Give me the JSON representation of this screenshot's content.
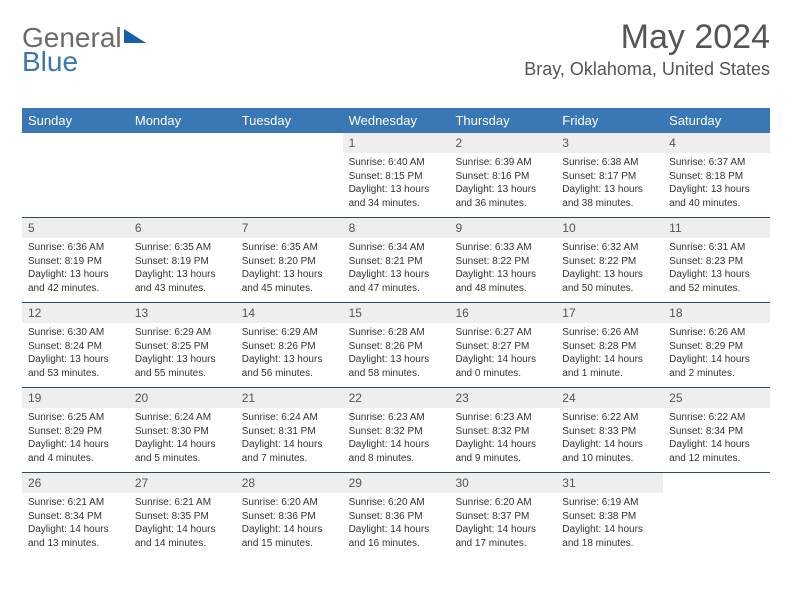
{
  "brand": {
    "part1": "General",
    "part2": "Blue"
  },
  "title": "May 2024",
  "location": "Bray, Oklahoma, United States",
  "colors": {
    "header_bg": "#3a78b5",
    "header_text": "#ffffff",
    "daynum_bg": "#eeeeee",
    "text": "#555555",
    "rule": "#264a6e"
  },
  "typography": {
    "title_fontsize": 34,
    "location_fontsize": 18,
    "dow_fontsize": 13,
    "daynum_fontsize": 12,
    "body_fontsize": 10
  },
  "dow": [
    "Sunday",
    "Monday",
    "Tuesday",
    "Wednesday",
    "Thursday",
    "Friday",
    "Saturday"
  ],
  "weeks": [
    [
      {
        "blank": true
      },
      {
        "blank": true
      },
      {
        "blank": true
      },
      {
        "n": "1",
        "sunrise": "6:40 AM",
        "sunset": "8:15 PM",
        "daylight": "13 hours and 34 minutes."
      },
      {
        "n": "2",
        "sunrise": "6:39 AM",
        "sunset": "8:16 PM",
        "daylight": "13 hours and 36 minutes."
      },
      {
        "n": "3",
        "sunrise": "6:38 AM",
        "sunset": "8:17 PM",
        "daylight": "13 hours and 38 minutes."
      },
      {
        "n": "4",
        "sunrise": "6:37 AM",
        "sunset": "8:18 PM",
        "daylight": "13 hours and 40 minutes."
      }
    ],
    [
      {
        "n": "5",
        "sunrise": "6:36 AM",
        "sunset": "8:19 PM",
        "daylight": "13 hours and 42 minutes."
      },
      {
        "n": "6",
        "sunrise": "6:35 AM",
        "sunset": "8:19 PM",
        "daylight": "13 hours and 43 minutes."
      },
      {
        "n": "7",
        "sunrise": "6:35 AM",
        "sunset": "8:20 PM",
        "daylight": "13 hours and 45 minutes."
      },
      {
        "n": "8",
        "sunrise": "6:34 AM",
        "sunset": "8:21 PM",
        "daylight": "13 hours and 47 minutes."
      },
      {
        "n": "9",
        "sunrise": "6:33 AM",
        "sunset": "8:22 PM",
        "daylight": "13 hours and 48 minutes."
      },
      {
        "n": "10",
        "sunrise": "6:32 AM",
        "sunset": "8:22 PM",
        "daylight": "13 hours and 50 minutes."
      },
      {
        "n": "11",
        "sunrise": "6:31 AM",
        "sunset": "8:23 PM",
        "daylight": "13 hours and 52 minutes."
      }
    ],
    [
      {
        "n": "12",
        "sunrise": "6:30 AM",
        "sunset": "8:24 PM",
        "daylight": "13 hours and 53 minutes."
      },
      {
        "n": "13",
        "sunrise": "6:29 AM",
        "sunset": "8:25 PM",
        "daylight": "13 hours and 55 minutes."
      },
      {
        "n": "14",
        "sunrise": "6:29 AM",
        "sunset": "8:26 PM",
        "daylight": "13 hours and 56 minutes."
      },
      {
        "n": "15",
        "sunrise": "6:28 AM",
        "sunset": "8:26 PM",
        "daylight": "13 hours and 58 minutes."
      },
      {
        "n": "16",
        "sunrise": "6:27 AM",
        "sunset": "8:27 PM",
        "daylight": "14 hours and 0 minutes."
      },
      {
        "n": "17",
        "sunrise": "6:26 AM",
        "sunset": "8:28 PM",
        "daylight": "14 hours and 1 minute."
      },
      {
        "n": "18",
        "sunrise": "6:26 AM",
        "sunset": "8:29 PM",
        "daylight": "14 hours and 2 minutes."
      }
    ],
    [
      {
        "n": "19",
        "sunrise": "6:25 AM",
        "sunset": "8:29 PM",
        "daylight": "14 hours and 4 minutes."
      },
      {
        "n": "20",
        "sunrise": "6:24 AM",
        "sunset": "8:30 PM",
        "daylight": "14 hours and 5 minutes."
      },
      {
        "n": "21",
        "sunrise": "6:24 AM",
        "sunset": "8:31 PM",
        "daylight": "14 hours and 7 minutes."
      },
      {
        "n": "22",
        "sunrise": "6:23 AM",
        "sunset": "8:32 PM",
        "daylight": "14 hours and 8 minutes."
      },
      {
        "n": "23",
        "sunrise": "6:23 AM",
        "sunset": "8:32 PM",
        "daylight": "14 hours and 9 minutes."
      },
      {
        "n": "24",
        "sunrise": "6:22 AM",
        "sunset": "8:33 PM",
        "daylight": "14 hours and 10 minutes."
      },
      {
        "n": "25",
        "sunrise": "6:22 AM",
        "sunset": "8:34 PM",
        "daylight": "14 hours and 12 minutes."
      }
    ],
    [
      {
        "n": "26",
        "sunrise": "6:21 AM",
        "sunset": "8:34 PM",
        "daylight": "14 hours and 13 minutes."
      },
      {
        "n": "27",
        "sunrise": "6:21 AM",
        "sunset": "8:35 PM",
        "daylight": "14 hours and 14 minutes."
      },
      {
        "n": "28",
        "sunrise": "6:20 AM",
        "sunset": "8:36 PM",
        "daylight": "14 hours and 15 minutes."
      },
      {
        "n": "29",
        "sunrise": "6:20 AM",
        "sunset": "8:36 PM",
        "daylight": "14 hours and 16 minutes."
      },
      {
        "n": "30",
        "sunrise": "6:20 AM",
        "sunset": "8:37 PM",
        "daylight": "14 hours and 17 minutes."
      },
      {
        "n": "31",
        "sunrise": "6:19 AM",
        "sunset": "8:38 PM",
        "daylight": "14 hours and 18 minutes."
      },
      {
        "blank": true
      }
    ]
  ],
  "labels": {
    "sunrise": "Sunrise:",
    "sunset": "Sunset:",
    "daylight": "Daylight:"
  }
}
